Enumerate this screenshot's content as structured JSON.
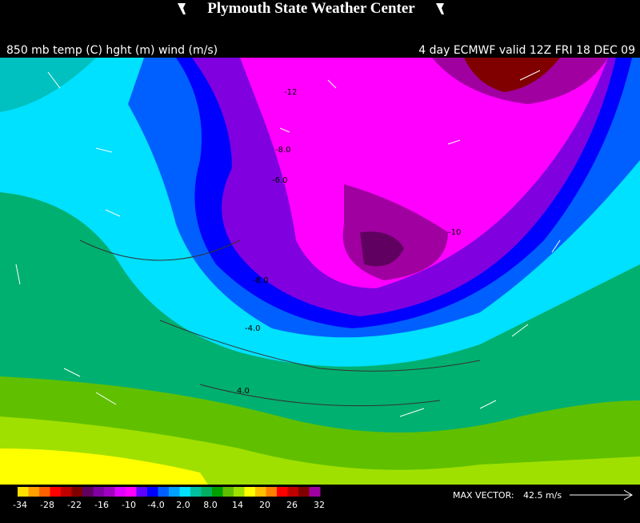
{
  "header": {
    "title": "Plymouth State Weather Center",
    "left_caption": "850 mb temp (C) hght (m) wind (m/s)",
    "right_caption": "4 day ECMWF valid 12Z FRI 18 DEC 09"
  },
  "contour_labels": [
    "-12",
    "-8.0",
    "-6.0",
    "-10",
    "-8.0",
    "-4.0",
    "4.0"
  ],
  "legend": {
    "ticks": [
      "-34",
      "-28",
      "-22",
      "-16",
      "-10",
      "-4.0",
      "2.0",
      "8.0",
      "14",
      "20",
      "26",
      "32"
    ]
  },
  "max_vector": {
    "label": "MAX VECTOR:",
    "value": "42.5 m/s"
  }
}
